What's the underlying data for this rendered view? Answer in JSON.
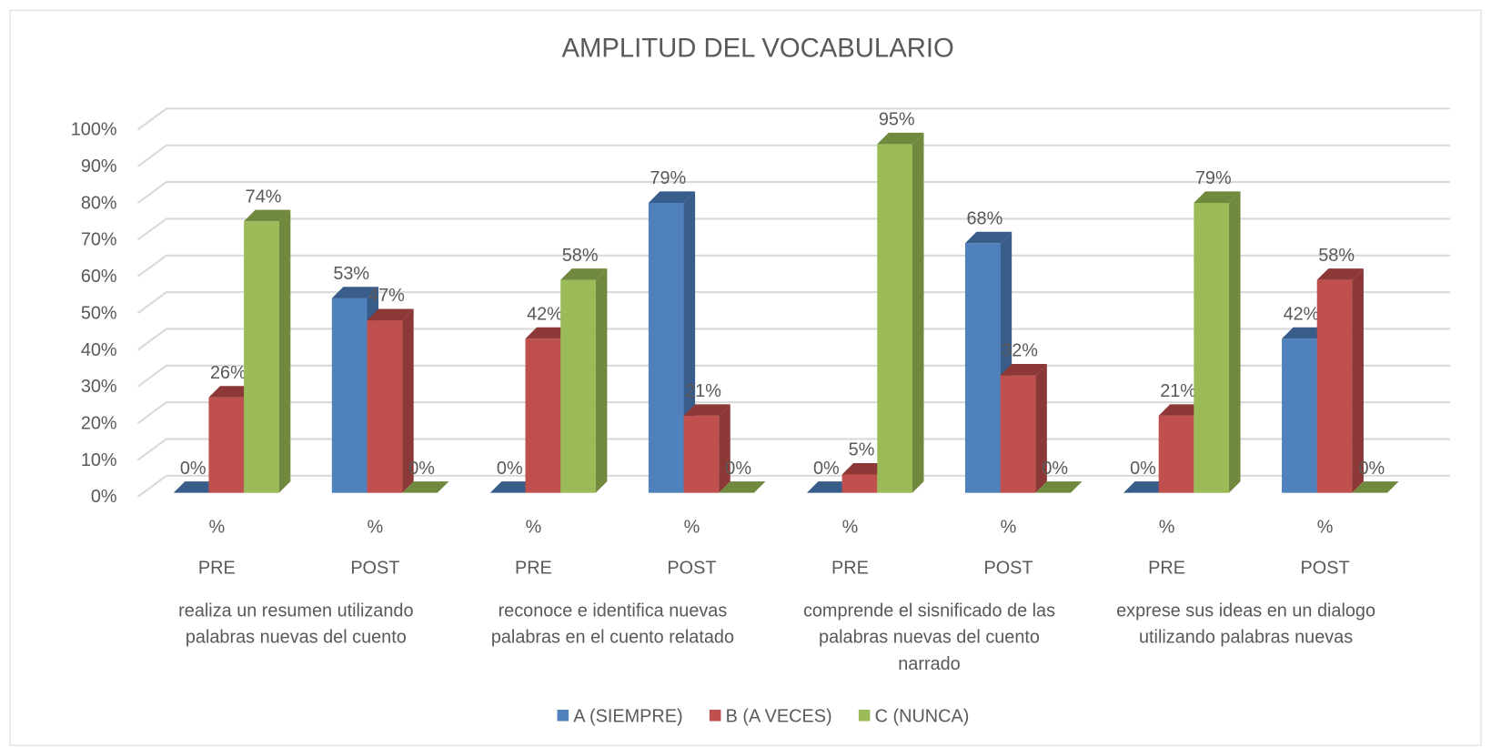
{
  "chart_data": {
    "type": "bar3d",
    "title": "AMPLITUD DEL VOCABULARIO",
    "categories": [
      "%",
      "%",
      "%",
      "%",
      "%",
      "%",
      "%",
      "%"
    ],
    "sub_categories": [
      "PRE",
      "POST",
      "PRE",
      "POST",
      "PRE",
      "POST",
      "PRE",
      "POST"
    ],
    "groups": [
      "realiza un resumen utilizando palabras nuevas del cuento",
      "reconoce e identifica nuevas palabras en el cuento relatado",
      "comprende el sisnificado de las palabras nuevas del cuento narrado",
      "exprese sus ideas en un dialogo utilizando palabras nuevas"
    ],
    "series": [
      {
        "name": "A (SIEMPRE)",
        "color": "#4f81bd",
        "side_color": "#385d8a",
        "values": [
          0,
          53,
          0,
          79,
          0,
          68,
          0,
          42
        ],
        "value_labels": [
          "0%",
          "53%",
          "0%",
          "79%",
          "0%",
          "68%",
          "0%",
          "42%"
        ]
      },
      {
        "name": "B (A VECES)",
        "color": "#c0504d",
        "side_color": "#8c3836",
        "values": [
          26,
          47,
          42,
          21,
          5,
          32,
          21,
          58
        ],
        "value_labels": [
          "26%",
          "47%",
          "42%",
          "21%",
          "5%",
          "32%",
          "21%",
          "58%"
        ]
      },
      {
        "name": "C (NUNCA)",
        "color": "#9bbb59",
        "side_color": "#71893f",
        "values": [
          74,
          0,
          58,
          0,
          95,
          0,
          79,
          0
        ],
        "value_labels": [
          "74%",
          "0%",
          "58%",
          "0%",
          "95%",
          "0%",
          "79%",
          "0%"
        ]
      }
    ],
    "ylim": [
      0,
      100
    ],
    "yticks": [
      {
        "value": 0,
        "label": "0%"
      },
      {
        "value": 10,
        "label": "10%"
      },
      {
        "value": 20,
        "label": "20%"
      },
      {
        "value": 30,
        "label": "30%"
      },
      {
        "value": 40,
        "label": "40%"
      },
      {
        "value": 50,
        "label": "50%"
      },
      {
        "value": 60,
        "label": "60%"
      },
      {
        "value": 70,
        "label": "70%"
      },
      {
        "value": 80,
        "label": "80%"
      },
      {
        "value": 90,
        "label": "90%"
      },
      {
        "value": 100,
        "label": "100%"
      }
    ],
    "grid": true,
    "legend": "bottom"
  }
}
